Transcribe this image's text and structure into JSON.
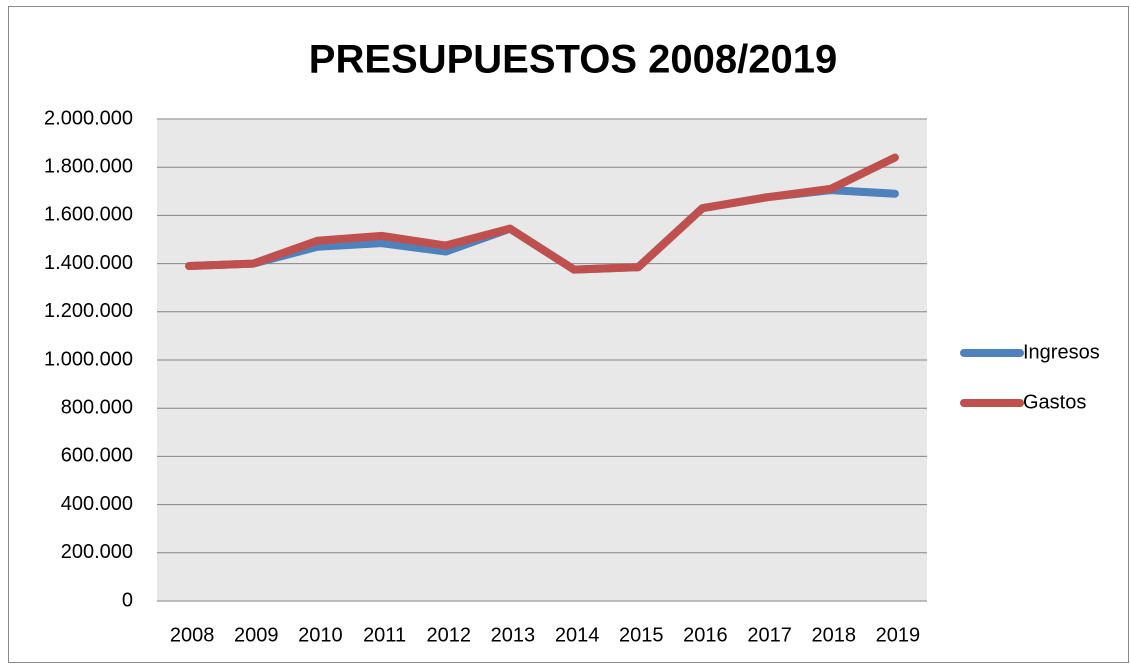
{
  "chart_data": {
    "type": "line",
    "title": "PRESUPUESTOS 2008/2019",
    "categories": [
      "2008",
      "2009",
      "2010",
      "2011",
      "2012",
      "2013",
      "2014",
      "2015",
      "2016",
      "2017",
      "2018",
      "2019"
    ],
    "series": [
      {
        "name": "Ingresos",
        "color": "#4f81bd",
        "values": [
          1390000,
          1400000,
          1470000,
          1485000,
          1450000,
          1545000,
          1375000,
          1385000,
          1630000,
          1675000,
          1705000,
          1690000
        ]
      },
      {
        "name": "Gastos",
        "color": "#c0504d",
        "values": [
          1390000,
          1400000,
          1495000,
          1515000,
          1475000,
          1545000,
          1375000,
          1385000,
          1630000,
          1675000,
          1710000,
          1840000
        ]
      }
    ],
    "ylim": [
      0,
      2000000
    ],
    "yticks": [
      0,
      {
        "value": 200000,
        "label": "200.000"
      },
      {
        "value": 400000,
        "label": "400.000"
      },
      {
        "value": 600000,
        "label": "600.000"
      },
      {
        "value": 800000,
        "label": "800.000"
      },
      {
        "value": 1000000,
        "label": "1.000.000"
      },
      {
        "value": 1200000,
        "label": "1.200.000"
      },
      {
        "value": 1400000,
        "label": "1.400.000"
      },
      {
        "value": 1600000,
        "label": "1.600.000"
      },
      {
        "value": 1800000,
        "label": "1.800.000"
      },
      {
        "value": 2000000,
        "label": "2.000.000"
      }
    ],
    "grid": true,
    "legend": "right"
  }
}
